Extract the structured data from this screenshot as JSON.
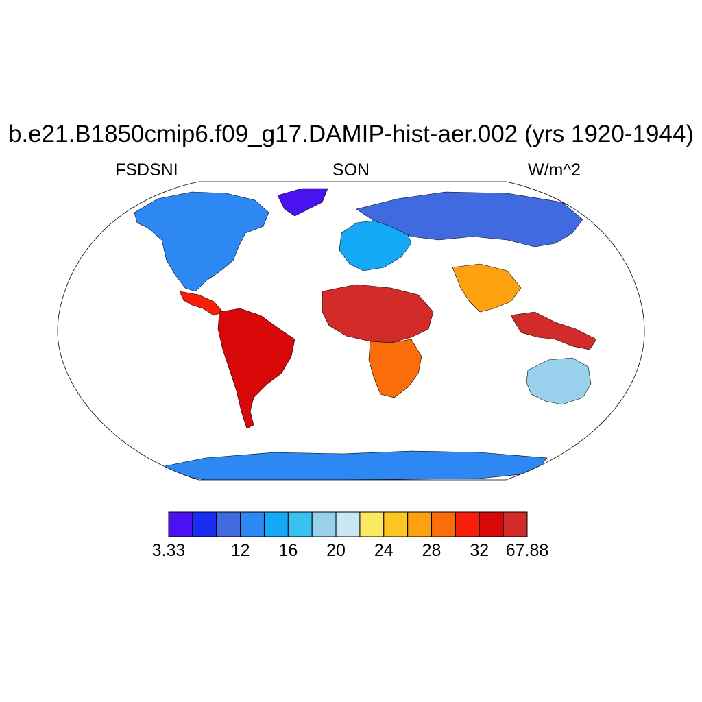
{
  "title": "b.e21.B1850cmip6.f09_g17.DAMIP-hist-aer.002 (yrs 1920-1944)",
  "variable": "FSDSNI",
  "season": "SON",
  "units": "W/m^2",
  "colorbar": {
    "colors": [
      "#4a12f0",
      "#1a2cf0",
      "#3f6ae0",
      "#2d88f3",
      "#14a9f5",
      "#39c1f2",
      "#99d1ec",
      "#c9e6f5",
      "#fde961",
      "#fdc624",
      "#fca10f",
      "#fb6d0a",
      "#f71e0a",
      "#d90808",
      "#d32a2a"
    ],
    "labels": [
      {
        "text": "3.33",
        "boundary": 0
      },
      {
        "text": "12",
        "boundary": 3
      },
      {
        "text": "16",
        "boundary": 5
      },
      {
        "text": "20",
        "boundary": 7
      },
      {
        "text": "24",
        "boundary": 9
      },
      {
        "text": "28",
        "boundary": 11
      },
      {
        "text": "32",
        "boundary": 13
      },
      {
        "text": "67.88",
        "boundary": 15
      }
    ]
  },
  "map_regions": [
    {
      "name": "north-america",
      "value_class": 3
    },
    {
      "name": "central-america",
      "value_class": 12
    },
    {
      "name": "south-america",
      "value_class": 13
    },
    {
      "name": "greenland",
      "value_class": 0
    },
    {
      "name": "europe",
      "value_class": 4
    },
    {
      "name": "north-asia",
      "value_class": 2
    },
    {
      "name": "sahara",
      "value_class": 14
    },
    {
      "name": "southern-africa",
      "value_class": 11
    },
    {
      "name": "india",
      "value_class": 10
    },
    {
      "name": "maritime-continent",
      "value_class": 14
    },
    {
      "name": "australia",
      "value_class": 6
    },
    {
      "name": "antarctica",
      "value_class": 3
    }
  ]
}
